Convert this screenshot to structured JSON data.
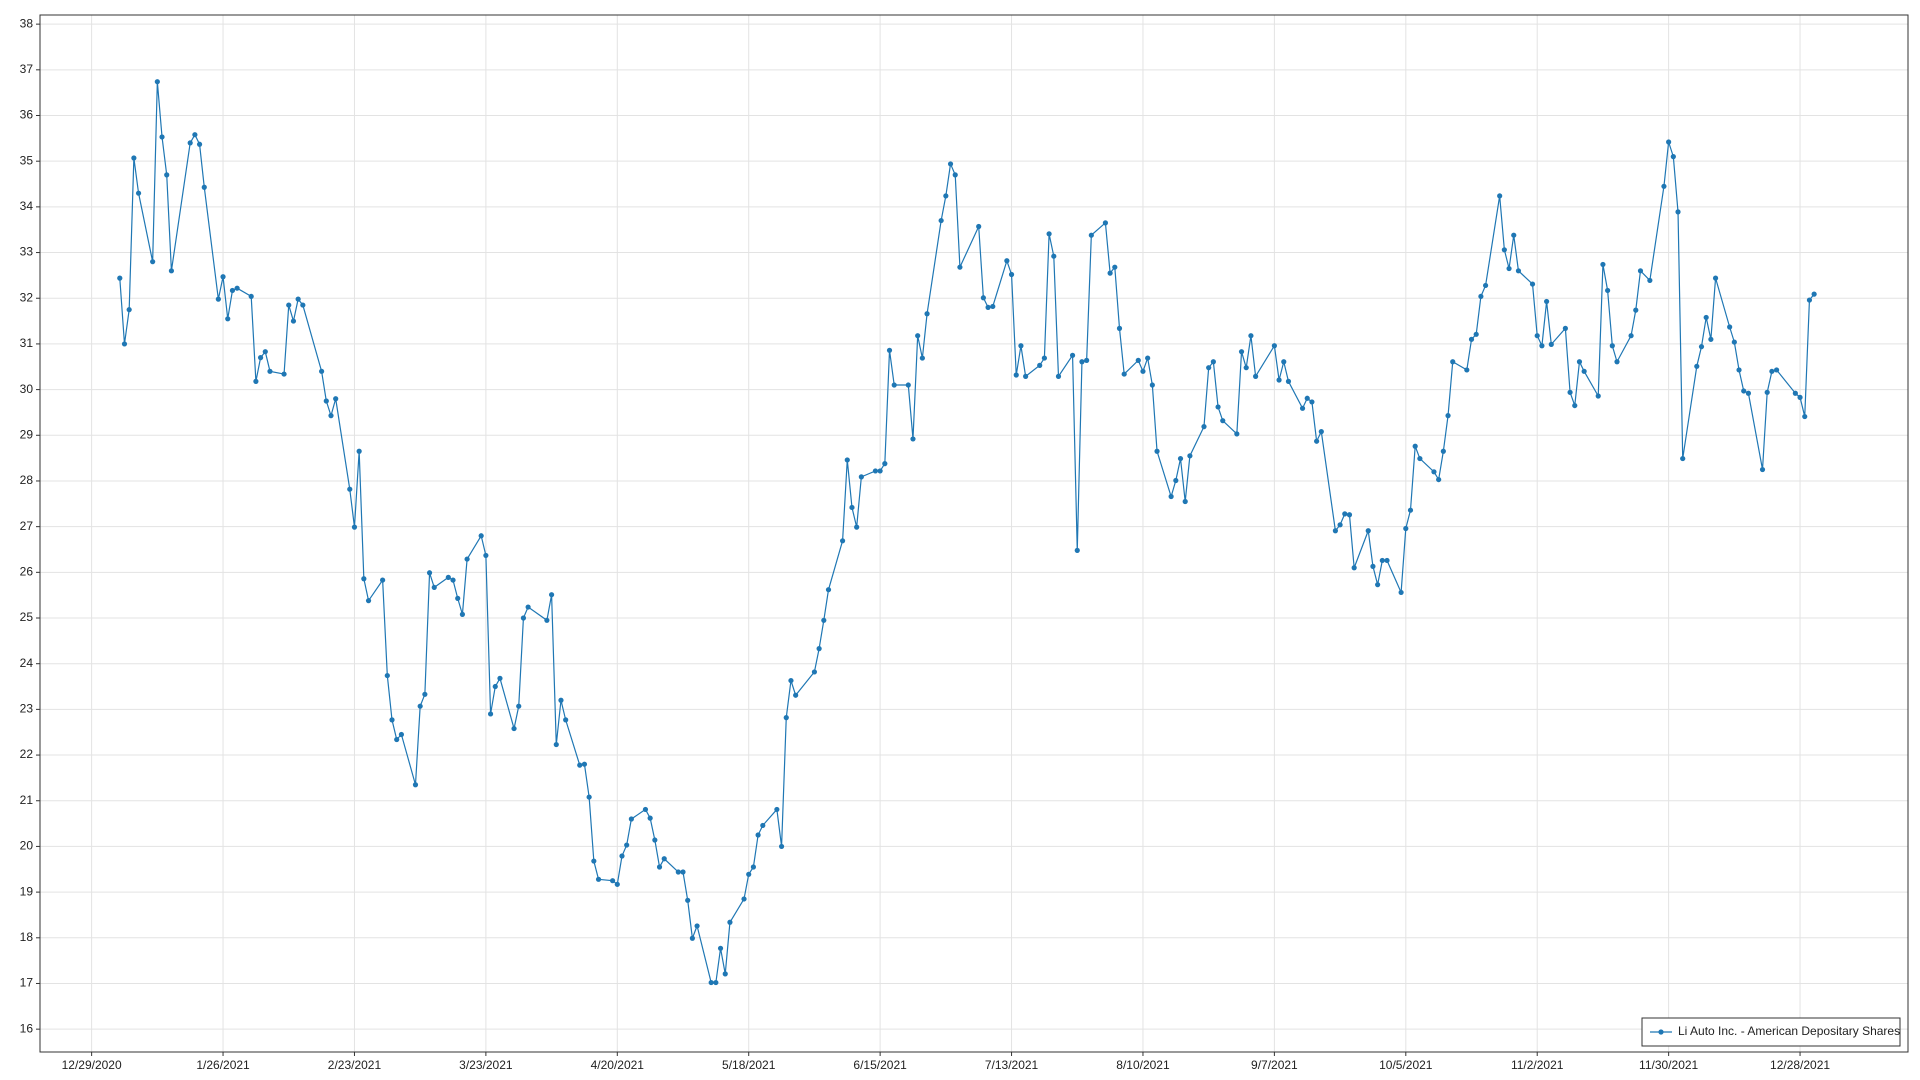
{
  "chart_data": {
    "type": "line",
    "x": [
      "1/4/2021",
      "1/5/2021",
      "1/6/2021",
      "1/7/2021",
      "1/8/2021",
      "1/11/2021",
      "1/12/2021",
      "1/13/2021",
      "1/14/2021",
      "1/15/2021",
      "1/19/2021",
      "1/20/2021",
      "1/21/2021",
      "1/22/2021",
      "1/25/2021",
      "1/26/2021",
      "1/27/2021",
      "1/28/2021",
      "1/29/2021",
      "2/1/2021",
      "2/2/2021",
      "2/3/2021",
      "2/4/2021",
      "2/5/2021",
      "2/8/2021",
      "2/9/2021",
      "2/10/2021",
      "2/11/2021",
      "2/12/2021",
      "2/16/2021",
      "2/17/2021",
      "2/18/2021",
      "2/19/2021",
      "2/22/2021",
      "2/23/2021",
      "2/24/2021",
      "2/25/2021",
      "2/26/2021",
      "3/1/2021",
      "3/2/2021",
      "3/3/2021",
      "3/4/2021",
      "3/5/2021",
      "3/8/2021",
      "3/9/2021",
      "3/10/2021",
      "3/11/2021",
      "3/12/2021",
      "3/15/2021",
      "3/16/2021",
      "3/17/2021",
      "3/18/2021",
      "3/19/2021",
      "3/22/2021",
      "3/23/2021",
      "3/24/2021",
      "3/25/2021",
      "3/26/2021",
      "3/29/2021",
      "3/30/2021",
      "3/31/2021",
      "4/1/2021",
      "4/5/2021",
      "4/6/2021",
      "4/7/2021",
      "4/8/2021",
      "4/9/2021",
      "4/12/2021",
      "4/13/2021",
      "4/14/2021",
      "4/15/2021",
      "4/16/2021",
      "4/19/2021",
      "4/20/2021",
      "4/21/2021",
      "4/22/2021",
      "4/23/2021",
      "4/26/2021",
      "4/27/2021",
      "4/28/2021",
      "4/29/2021",
      "4/30/2021",
      "5/3/2021",
      "5/4/2021",
      "5/5/2021",
      "5/6/2021",
      "5/7/2021",
      "5/10/2021",
      "5/11/2021",
      "5/12/2021",
      "5/13/2021",
      "5/14/2021",
      "5/17/2021",
      "5/18/2021",
      "5/19/2021",
      "5/20/2021",
      "5/21/2021",
      "5/24/2021",
      "5/25/2021",
      "5/26/2021",
      "5/27/2021",
      "5/28/2021",
      "6/1/2021",
      "6/2/2021",
      "6/3/2021",
      "6/4/2021",
      "6/7/2021",
      "6/8/2021",
      "6/9/2021",
      "6/10/2021",
      "6/11/2021",
      "6/14/2021",
      "6/15/2021",
      "6/16/2021",
      "6/17/2021",
      "6/18/2021",
      "6/21/2021",
      "6/22/2021",
      "6/23/2021",
      "6/24/2021",
      "6/25/2021",
      "6/28/2021",
      "6/29/2021",
      "6/30/2021",
      "7/1/2021",
      "7/2/2021",
      "7/6/2021",
      "7/7/2021",
      "7/8/2021",
      "7/9/2021",
      "7/12/2021",
      "7/13/2021",
      "7/14/2021",
      "7/15/2021",
      "7/16/2021",
      "7/19/2021",
      "7/20/2021",
      "7/21/2021",
      "7/22/2021",
      "7/23/2021",
      "7/26/2021",
      "7/27/2021",
      "7/28/2021",
      "7/29/2021",
      "7/30/2021",
      "8/2/2021",
      "8/3/2021",
      "8/4/2021",
      "8/5/2021",
      "8/6/2021",
      "8/9/2021",
      "8/10/2021",
      "8/11/2021",
      "8/12/2021",
      "8/13/2021",
      "8/16/2021",
      "8/17/2021",
      "8/18/2021",
      "8/19/2021",
      "8/20/2021",
      "8/23/2021",
      "8/24/2021",
      "8/25/2021",
      "8/26/2021",
      "8/27/2021",
      "8/30/2021",
      "8/31/2021",
      "9/1/2021",
      "9/2/2021",
      "9/3/2021",
      "9/7/2021",
      "9/8/2021",
      "9/9/2021",
      "9/10/2021",
      "9/13/2021",
      "9/14/2021",
      "9/15/2021",
      "9/16/2021",
      "9/17/2021",
      "9/20/2021",
      "9/21/2021",
      "9/22/2021",
      "9/23/2021",
      "9/24/2021",
      "9/27/2021",
      "9/28/2021",
      "9/29/2021",
      "9/30/2021",
      "10/1/2021",
      "10/4/2021",
      "10/5/2021",
      "10/6/2021",
      "10/7/2021",
      "10/8/2021",
      "10/11/2021",
      "10/12/2021",
      "10/13/2021",
      "10/14/2021",
      "10/15/2021",
      "10/18/2021",
      "10/19/2021",
      "10/20/2021",
      "10/21/2021",
      "10/22/2021",
      "10/25/2021",
      "10/26/2021",
      "10/27/2021",
      "10/28/2021",
      "10/29/2021",
      "11/1/2021",
      "11/2/2021",
      "11/3/2021",
      "11/4/2021",
      "11/5/2021",
      "11/8/2021",
      "11/9/2021",
      "11/10/2021",
      "11/11/2021",
      "11/12/2021",
      "11/15/2021",
      "11/16/2021",
      "11/17/2021",
      "11/18/2021",
      "11/19/2021",
      "11/22/2021",
      "11/23/2021",
      "11/24/2021",
      "11/26/2021",
      "11/29/2021",
      "11/30/2021",
      "12/1/2021",
      "12/2/2021",
      "12/3/2021",
      "12/6/2021",
      "12/7/2021",
      "12/8/2021",
      "12/9/2021",
      "12/10/2021",
      "12/13/2021",
      "12/14/2021",
      "12/15/2021",
      "12/16/2021",
      "12/17/2021",
      "12/20/2021",
      "12/21/2021",
      "12/22/2021",
      "12/23/2021",
      "12/27/2021",
      "12/28/2021",
      "12/29/2021",
      "12/30/2021",
      "12/31/2021"
    ],
    "series": [
      {
        "name": "Li Auto Inc. - American Depositary Shares",
        "color": "#1f77b4",
        "values": [
          32.44,
          31.0,
          31.75,
          35.07,
          34.3,
          32.8,
          36.74,
          35.53,
          34.7,
          32.6,
          35.4,
          35.58,
          35.37,
          34.43,
          31.98,
          32.47,
          31.55,
          32.17,
          32.22,
          32.04,
          30.18,
          30.7,
          30.83,
          30.4,
          30.34,
          31.85,
          31.5,
          31.98,
          31.85,
          30.4,
          29.75,
          29.43,
          29.8,
          27.82,
          26.99,
          28.65,
          25.86,
          25.38,
          25.83,
          23.74,
          22.77,
          22.34,
          22.45,
          21.35,
          23.07,
          23.33,
          25.99,
          25.67,
          25.89,
          25.83,
          25.43,
          25.08,
          26.29,
          26.8,
          26.37,
          22.9,
          23.5,
          23.68,
          22.58,
          23.07,
          25.0,
          25.24,
          24.95,
          25.51,
          22.23,
          23.2,
          22.77,
          21.78,
          21.8,
          21.08,
          19.68,
          19.28,
          19.25,
          19.17,
          19.79,
          20.03,
          20.6,
          20.81,
          20.62,
          20.14,
          19.55,
          19.73,
          19.44,
          19.44,
          18.82,
          17.99,
          18.26,
          17.02,
          17.02,
          17.77,
          17.21,
          18.34,
          18.85,
          19.39,
          19.55,
          20.25,
          20.46,
          20.81,
          20.0,
          22.82,
          23.63,
          23.31,
          23.82,
          24.33,
          24.95,
          25.62,
          26.69,
          28.46,
          27.42,
          26.99,
          28.09,
          28.22,
          28.22,
          28.38,
          30.86,
          30.1,
          30.1,
          28.92,
          31.18,
          30.69,
          31.66,
          33.7,
          34.24,
          34.94,
          34.7,
          32.68,
          33.57,
          32.01,
          31.8,
          31.82,
          32.82,
          32.52,
          30.32,
          30.96,
          30.29,
          30.53,
          30.69,
          33.41,
          32.92,
          30.29,
          30.75,
          26.48,
          30.61,
          30.64,
          33.38,
          33.65,
          32.55,
          32.68,
          31.34,
          30.34,
          30.64,
          30.4,
          30.69,
          30.1,
          28.65,
          27.66,
          28.01,
          28.49,
          27.55,
          28.55,
          29.19,
          30.48,
          30.61,
          29.62,
          29.32,
          29.03,
          30.83,
          30.48,
          31.18,
          30.29,
          30.96,
          30.21,
          30.61,
          30.18,
          29.59,
          29.81,
          29.73,
          28.87,
          29.08,
          26.91,
          27.04,
          27.28,
          27.26,
          26.1,
          26.91,
          26.13,
          25.73,
          26.26,
          26.26,
          25.56,
          26.96,
          27.36,
          28.76,
          28.49,
          28.2,
          28.03,
          28.65,
          29.43,
          30.61,
          30.43,
          31.1,
          31.21,
          32.04,
          32.28,
          34.24,
          33.06,
          32.65,
          33.38,
          32.6,
          32.31,
          31.18,
          30.96,
          31.93,
          30.99,
          31.34,
          29.94,
          29.65,
          30.61,
          30.4,
          29.86,
          32.74,
          32.17,
          30.96,
          30.61,
          31.18,
          31.74,
          32.6,
          32.39,
          34.45,
          35.42,
          35.1,
          33.89,
          28.49,
          30.51,
          30.94,
          31.58,
          31.1,
          32.44,
          31.37,
          31.04,
          30.43,
          29.97,
          29.92,
          28.25,
          29.94,
          30.4,
          30.43,
          29.92,
          29.83,
          29.41,
          31.96,
          32.09
        ]
      }
    ],
    "xlim": [
      "12/18/2020",
      "1/20/2022"
    ],
    "xticks": [
      "12/29/2020",
      "1/26/2021",
      "2/23/2021",
      "3/23/2021",
      "4/20/2021",
      "5/18/2021",
      "6/15/2021",
      "7/13/2021",
      "8/10/2021",
      "9/7/2021",
      "10/5/2021",
      "11/2/2021",
      "11/30/2021",
      "12/28/2021"
    ],
    "ylim": [
      15.5,
      38.2
    ],
    "yticks": [
      16,
      17,
      18,
      19,
      20,
      21,
      22,
      23,
      24,
      25,
      26,
      27,
      28,
      29,
      30,
      31,
      32,
      33,
      34,
      35,
      36,
      37,
      38
    ],
    "grid": true,
    "markers": true,
    "legend": "lower right"
  }
}
